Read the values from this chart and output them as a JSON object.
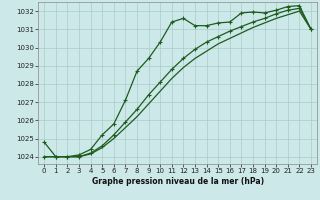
{
  "title": "Graphe pression niveau de la mer (hPa)",
  "bg_color": "#cce8e8",
  "grid_color": "#aacccc",
  "line_color": "#1e5c1e",
  "xlim": [
    -0.5,
    23.5
  ],
  "ylim": [
    1023.6,
    1032.5
  ],
  "yticks": [
    1024,
    1025,
    1026,
    1027,
    1028,
    1029,
    1030,
    1031,
    1032
  ],
  "xticks": [
    0,
    1,
    2,
    3,
    4,
    5,
    6,
    7,
    8,
    9,
    10,
    11,
    12,
    13,
    14,
    15,
    16,
    17,
    18,
    19,
    20,
    21,
    22,
    23
  ],
  "line1_x": [
    0,
    1,
    2,
    3,
    4,
    5,
    6,
    7,
    8,
    9,
    10,
    11,
    12,
    13,
    14,
    15,
    16,
    17,
    18,
    19,
    20,
    21,
    22,
    23
  ],
  "line1_y": [
    1024.8,
    1024.0,
    1024.0,
    1024.1,
    1024.4,
    1025.2,
    1025.8,
    1027.1,
    1028.7,
    1029.4,
    1030.3,
    1031.4,
    1031.6,
    1031.2,
    1031.2,
    1031.35,
    1031.4,
    1031.9,
    1031.95,
    1031.9,
    1032.05,
    1032.25,
    1032.3,
    1031.0
  ],
  "line2_x": [
    0,
    1,
    2,
    3,
    4,
    5,
    6,
    7,
    8,
    9,
    10,
    11,
    12,
    13,
    14,
    15,
    16,
    17,
    18,
    19,
    20,
    21,
    22,
    23
  ],
  "line2_y": [
    1024.0,
    1024.0,
    1024.0,
    1024.0,
    1024.15,
    1024.5,
    1025.0,
    1025.6,
    1026.2,
    1026.9,
    1027.6,
    1028.3,
    1028.9,
    1029.4,
    1029.8,
    1030.2,
    1030.5,
    1030.8,
    1031.1,
    1031.35,
    1031.6,
    1031.8,
    1032.0,
    1031.0
  ],
  "line3_x": [
    0,
    1,
    2,
    3,
    4,
    5,
    6,
    7,
    8,
    9,
    10,
    11,
    12,
    13,
    14,
    15,
    16,
    17,
    18,
    19,
    20,
    21,
    22,
    23
  ],
  "line3_y": [
    1024.0,
    1024.0,
    1024.0,
    1024.0,
    1024.2,
    1024.6,
    1025.2,
    1025.9,
    1026.6,
    1027.4,
    1028.1,
    1028.8,
    1029.4,
    1029.9,
    1030.3,
    1030.6,
    1030.9,
    1031.15,
    1031.4,
    1031.6,
    1031.85,
    1032.05,
    1032.15,
    1031.0
  ]
}
